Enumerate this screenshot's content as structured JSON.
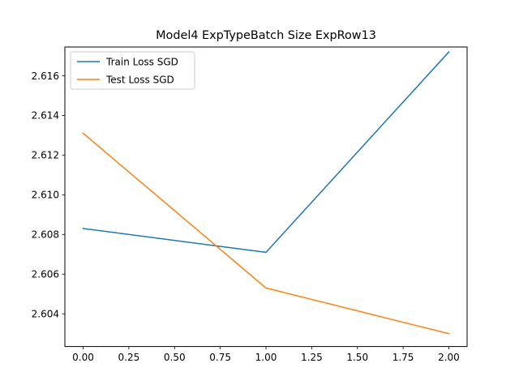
{
  "chart_data": {
    "type": "line",
    "title": "Model4 ExpTypeBatch Size ExpRow13",
    "xlabel": "",
    "ylabel": "",
    "xlim": [
      -0.1,
      2.1
    ],
    "ylim": [
      2.60235,
      2.61745
    ],
    "x_ticks": [
      0.0,
      0.25,
      0.5,
      0.75,
      1.0,
      1.25,
      1.5,
      1.75,
      2.0
    ],
    "x_tick_labels": [
      "0.00",
      "0.25",
      "0.50",
      "0.75",
      "1.00",
      "1.25",
      "1.50",
      "1.75",
      "2.00"
    ],
    "y_ticks": [
      2.604,
      2.606,
      2.608,
      2.61,
      2.612,
      2.614,
      2.616
    ],
    "y_tick_labels": [
      "2.604",
      "2.606",
      "2.608",
      "2.610",
      "2.612",
      "2.614",
      "2.616"
    ],
    "grid": false,
    "legend_position": "top-left",
    "x": [
      0,
      1,
      2
    ],
    "series": [
      {
        "name": "Train Loss SGD",
        "color": "#1f77b4",
        "values": [
          2.6083,
          2.6071,
          2.6172
        ]
      },
      {
        "name": "Test Loss SGD",
        "color": "#ff7f0e",
        "values": [
          2.6131,
          2.6053,
          2.603
        ]
      }
    ]
  }
}
